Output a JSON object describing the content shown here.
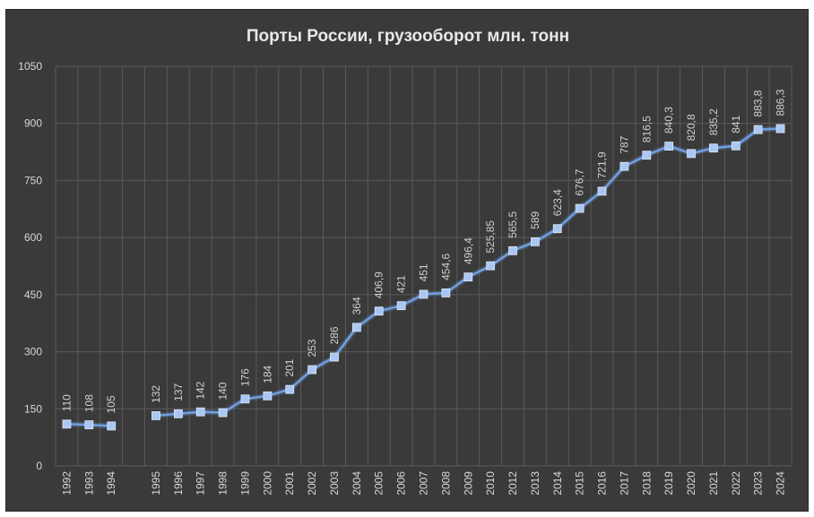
{
  "chart_data": {
    "type": "line",
    "title": "Порты России, грузооборот млн. тонн",
    "xlabel": "",
    "ylabel": "",
    "ylim": [
      0,
      1050
    ],
    "y_ticks": [
      "0",
      "150",
      "300",
      "450",
      "600",
      "750",
      "900",
      "1050"
    ],
    "y_tick_values": [
      0,
      150,
      300,
      450,
      600,
      750,
      900,
      1050
    ],
    "grid": true,
    "legend": "none",
    "colors": {
      "background": "#3a3a3a",
      "line": "#6f9fe0",
      "marker": "#a9c7f2",
      "grid": "#5a5a5a",
      "text": "#d8d8d8"
    },
    "categories": [
      "1992",
      "1993",
      "1994",
      "",
      "1995",
      "1996",
      "1997",
      "1998",
      "1999",
      "2000",
      "2001",
      "2002",
      "2003",
      "2004",
      "2005",
      "2006",
      "2007",
      "2008",
      "2009",
      "2010",
      "2012",
      "2013",
      "2014",
      "2015",
      "2016",
      "2017",
      "2018",
      "2019",
      "2020",
      "2021",
      "2022",
      "2023",
      "2024"
    ],
    "values": [
      110,
      108,
      105,
      null,
      132,
      137,
      142,
      140,
      176,
      184,
      201,
      253,
      286,
      364,
      406.9,
      421,
      451,
      454.6,
      496.4,
      525.85,
      565.5,
      589,
      623.4,
      676.7,
      721.9,
      787,
      816.5,
      840.3,
      820.8,
      835.2,
      841,
      883.8,
      886.3
    ],
    "data_labels": [
      "110",
      "108",
      "105",
      "",
      "132",
      "137",
      "142",
      "140",
      "176",
      "184",
      "201",
      "253",
      "286",
      "364",
      "406,9",
      "421",
      "451",
      "454,6",
      "496,4",
      "525,85",
      "565,5",
      "589",
      "623,4",
      "676,7",
      "721,9",
      "787",
      "816,5",
      "840,3",
      "820,8",
      "835,2",
      "841",
      "883,8",
      "886,3"
    ]
  }
}
